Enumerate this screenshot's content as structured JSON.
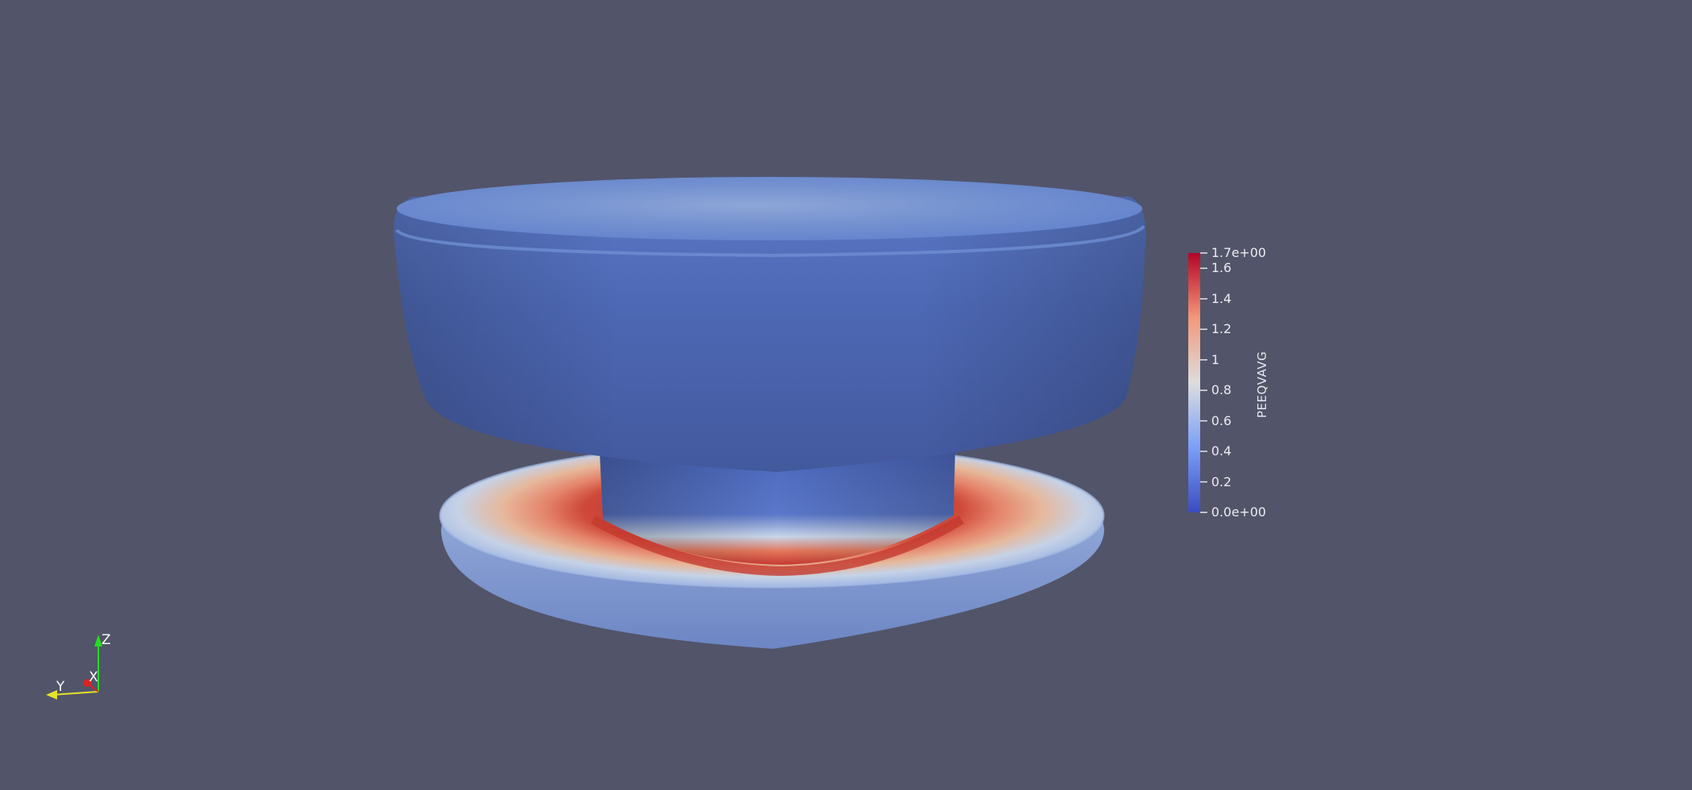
{
  "colorbar": {
    "title": "PEEQVAVG",
    "range": [
      0.0,
      1.7
    ],
    "colormap": "Cool to Warm",
    "ticks": [
      "1.7e+00",
      "1.6",
      "1.4",
      "1.2",
      "1",
      "0.8",
      "0.6",
      "0.4",
      "0.2",
      "0.0e+00"
    ]
  },
  "axes": {
    "x": "X",
    "y": "Y",
    "z": "Z"
  },
  "colors": {
    "background": "#525469",
    "low": "#3b4cc0",
    "mid": "#dddddd",
    "high": "#b40426"
  }
}
